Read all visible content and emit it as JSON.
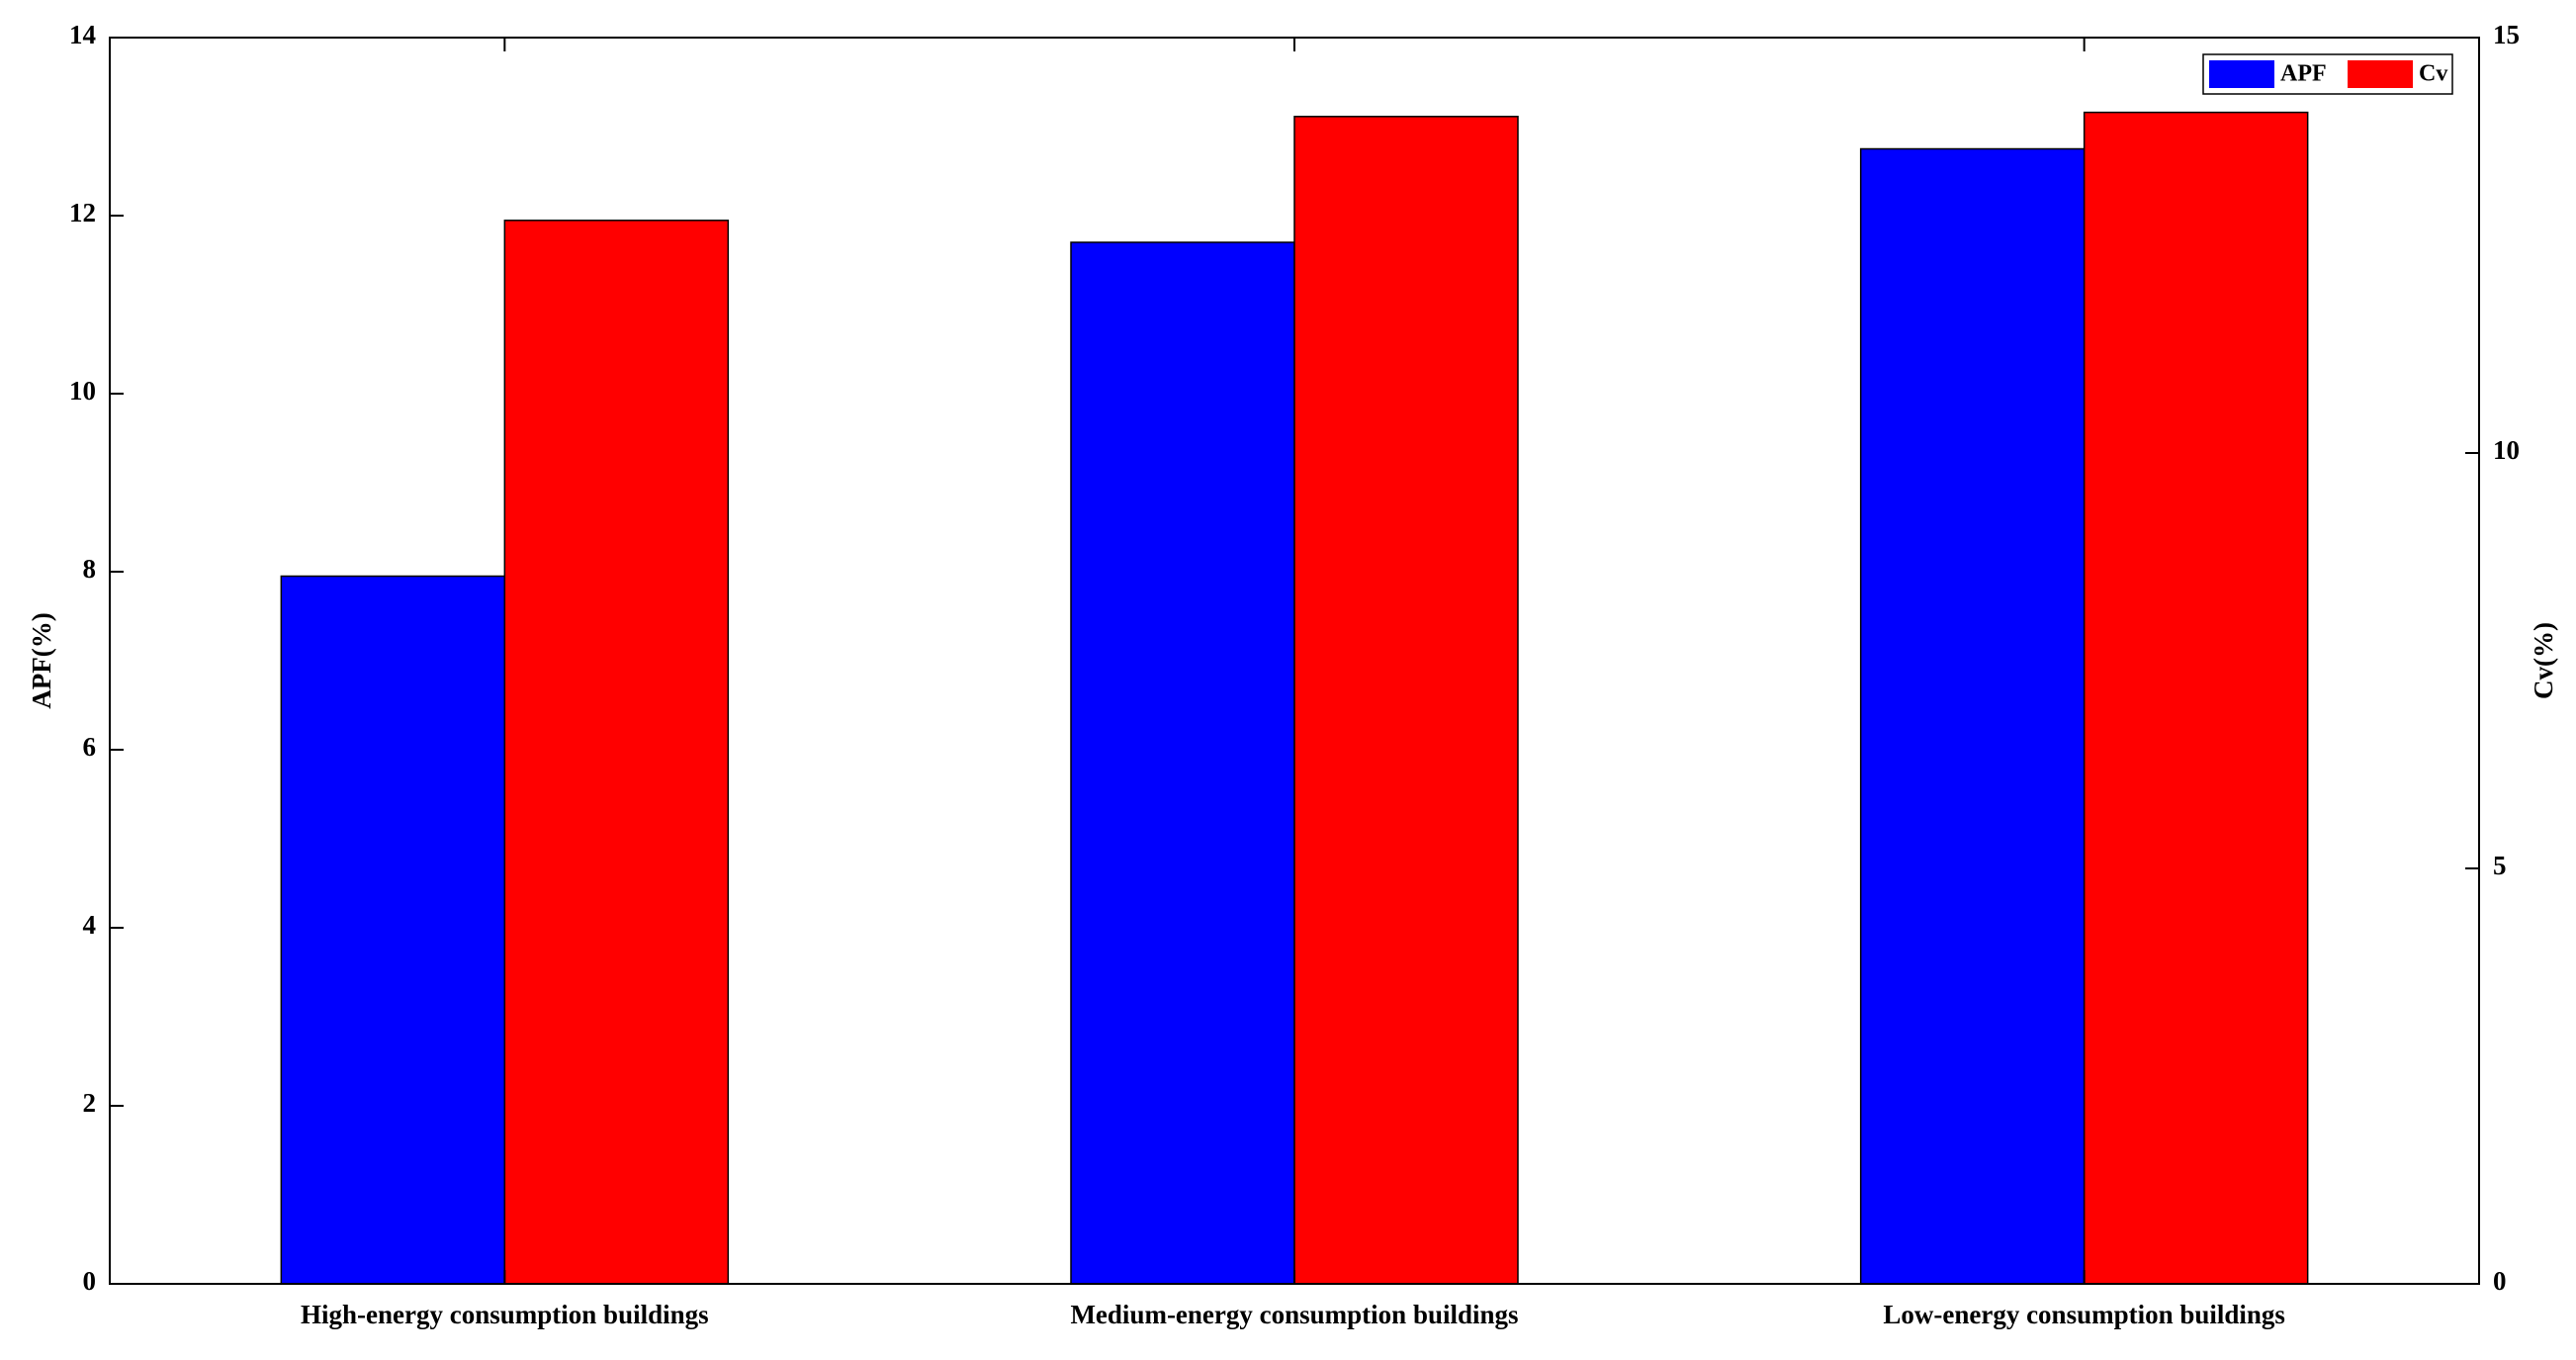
{
  "chart_data": {
    "type": "bar",
    "categories": [
      "High-energy consumption buildings",
      "Medium-energy consumption buildings",
      "Low-energy consumption buildings"
    ],
    "series": [
      {
        "name": "APF",
        "color": "#0000ff",
        "values": [
          7.95,
          11.7,
          12.75
        ]
      },
      {
        "name": "Cv",
        "color": "#ff0000",
        "axis": "y2",
        "values": [
          12.8,
          14.05,
          14.1
        ]
      }
    ],
    "y_label": "APF(%)",
    "y2_label": "Cv(%)",
    "ylim": [
      0,
      14
    ],
    "yticks": [
      0,
      2,
      4,
      6,
      8,
      10,
      12,
      14
    ],
    "y2lim": [
      0,
      15
    ],
    "y2ticks": [
      0,
      5,
      10,
      15
    ],
    "legend": "top-right"
  }
}
